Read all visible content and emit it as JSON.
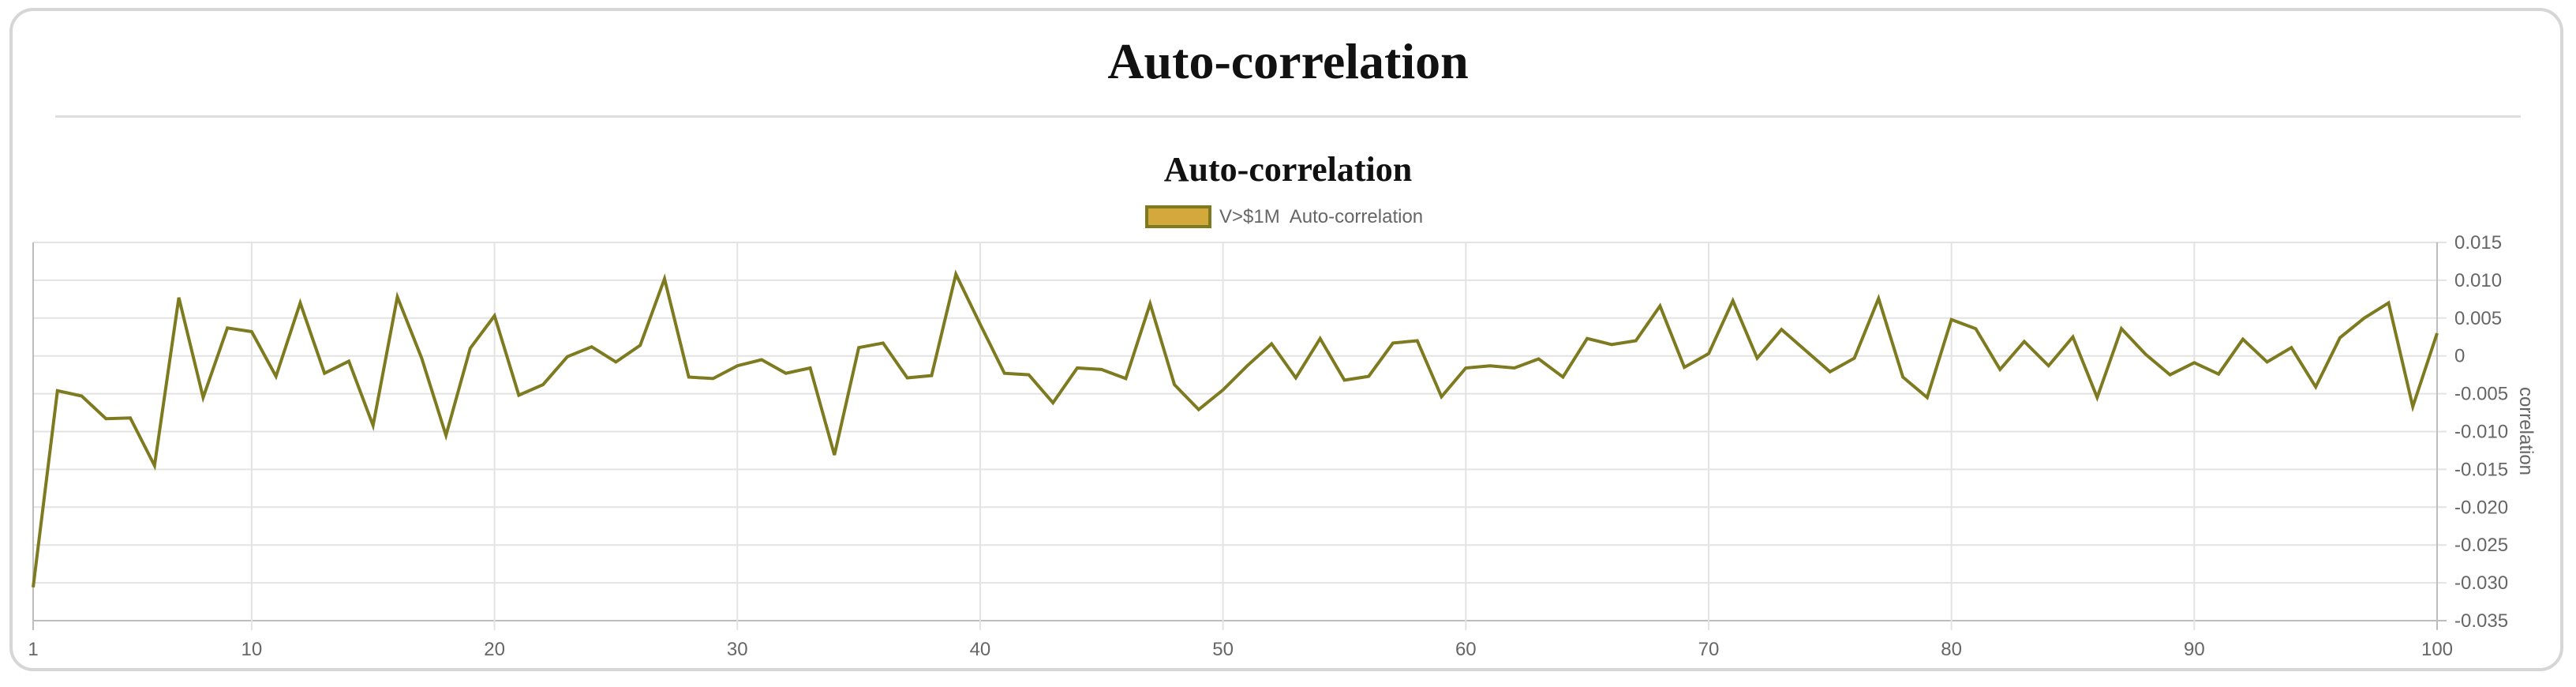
{
  "page": {
    "title": "Auto-correlation"
  },
  "chart_data": {
    "type": "line",
    "title": "Auto-correlation",
    "xlabel": "",
    "ylabel": "correlation",
    "xlim": [
      1,
      100
    ],
    "ylim": [
      -0.035,
      0.015
    ],
    "y_axis_position": "right",
    "x_ticks": [
      1,
      10,
      20,
      30,
      40,
      50,
      60,
      70,
      80,
      90,
      100
    ],
    "y_ticks": [
      "0.015",
      "0.010",
      "0.005",
      "0",
      "-0.005",
      "-0.010",
      "-0.015",
      "-0.020",
      "-0.025",
      "-0.030",
      "-0.035"
    ],
    "y_tick_values": [
      0.015,
      0.01,
      0.005,
      0,
      -0.005,
      -0.01,
      -0.015,
      -0.02,
      -0.025,
      -0.03,
      -0.035
    ],
    "grid": true,
    "legend_position": "top-center",
    "series": [
      {
        "name": "V>$1M  Auto-correlation",
        "color": "#7d7a1f",
        "legend_fill": "#d4a93c",
        "x": [
          1,
          2,
          3,
          4,
          5,
          6,
          7,
          8,
          9,
          10,
          11,
          12,
          13,
          14,
          15,
          16,
          17,
          18,
          19,
          20,
          21,
          22,
          23,
          24,
          25,
          26,
          27,
          28,
          29,
          30,
          31,
          32,
          33,
          34,
          35,
          36,
          37,
          38,
          39,
          40,
          41,
          42,
          43,
          44,
          45,
          46,
          47,
          48,
          49,
          50,
          51,
          52,
          53,
          54,
          55,
          56,
          57,
          58,
          59,
          60,
          61,
          62,
          63,
          64,
          65,
          66,
          67,
          68,
          69,
          70,
          71,
          72,
          73,
          74,
          75,
          76,
          77,
          78,
          79,
          80,
          81,
          82,
          83,
          84,
          85,
          86,
          87,
          88,
          89,
          90,
          91,
          92,
          93,
          94,
          95,
          96,
          97,
          98,
          99,
          100
        ],
        "values": [
          -0.0306,
          -0.0046,
          -0.0053,
          -0.0083,
          -0.0082,
          -0.0145,
          0.0077,
          -0.0055,
          0.0037,
          0.0032,
          -0.0027,
          0.007,
          -0.0023,
          -0.0007,
          -0.0092,
          0.0078,
          -0.0003,
          -0.0105,
          0.001,
          0.0053,
          -0.0052,
          -0.0038,
          -0.0001,
          0.0012,
          -0.0008,
          0.0014,
          0.0102,
          -0.0028,
          -0.003,
          -0.0013,
          -0.0005,
          -0.0023,
          -0.0016,
          -0.0131,
          0.0011,
          0.0017,
          -0.0029,
          -0.0026,
          0.0108,
          0.0042,
          -0.0023,
          -0.0025,
          -0.0062,
          -0.0016,
          -0.0018,
          -0.003,
          0.0069,
          -0.0038,
          -0.0071,
          -0.0045,
          -0.0013,
          0.0016,
          -0.0029,
          0.0023,
          -0.0032,
          -0.0027,
          0.0017,
          0.002,
          -0.0054,
          -0.0016,
          -0.0013,
          -0.0016,
          -0.0004,
          -0.0028,
          0.0023,
          0.0015,
          0.002,
          0.0066,
          -0.0015,
          0.0003,
          0.0073,
          -0.0003,
          0.0035,
          0.0007,
          -0.0021,
          -0.0003,
          0.0076,
          -0.0028,
          -0.0055,
          0.0048,
          0.0036,
          -0.0018,
          0.0019,
          -0.0013,
          0.0025,
          -0.0055,
          0.0036,
          0.0002,
          -0.0025,
          -0.0009,
          -0.0024,
          0.0022,
          -0.0008,
          0.0011,
          -0.0041,
          0.0024,
          0.005,
          0.007,
          -0.0067,
          0.003
        ]
      }
    ]
  }
}
